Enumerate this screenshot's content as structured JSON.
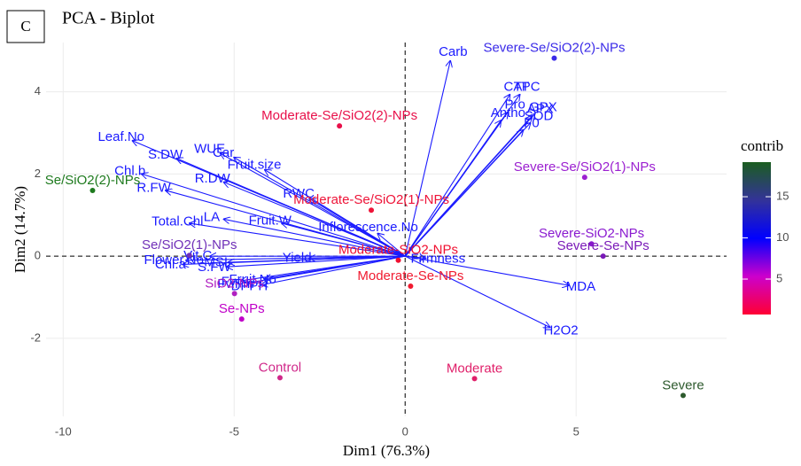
{
  "chart_data": {
    "type": "biplot",
    "panel_label": "C",
    "title": "PCA - Biplot",
    "x_label": "Dim1 (76.3%)",
    "y_label": "Dim2 (14.7%)",
    "xlim": [
      -10.5,
      9.4
    ],
    "ylim": [
      -3.9,
      5.2
    ],
    "xticks": [
      -10,
      -5,
      0,
      5
    ],
    "yticks": [
      -2,
      0,
      2,
      4
    ],
    "grid": true,
    "points": [
      {
        "name": "Severe-Se/SiO2(2)-NPs",
        "x": 4.36,
        "y": 4.82,
        "color": "#3a2ae8"
      },
      {
        "name": "Severe-Se/SiO2(1)-NPs",
        "x": 5.25,
        "y": 1.92,
        "color": "#9b1fd0"
      },
      {
        "name": "Severe-SiO2-NPs",
        "x": 5.45,
        "y": 0.3,
        "color": "#8a1ad0"
      },
      {
        "name": "Severe-Se-NPs",
        "x": 5.79,
        "y": 0.0,
        "color": "#7a1ab8"
      },
      {
        "name": "Moderate-Se/SiO2(2)-NPs",
        "x": -1.92,
        "y": 3.17,
        "color": "#e8104a"
      },
      {
        "name": "Moderate-Se/SiO2(1)-NPs",
        "x": -0.99,
        "y": 1.12,
        "color": "#ee1438"
      },
      {
        "name": "Moderate-SiO2-NPs",
        "x": -0.2,
        "y": -0.1,
        "color": "#f01030"
      },
      {
        "name": "Moderate-Se-NPs",
        "x": 0.16,
        "y": -0.73,
        "color": "#f01a30"
      },
      {
        "name": "Moderate",
        "x": 2.03,
        "y": -2.98,
        "color": "#e0206a"
      },
      {
        "name": "Severe",
        "x": 8.13,
        "y": -3.39,
        "color": "#2d5a2d"
      },
      {
        "name": "Control",
        "x": -3.66,
        "y": -2.96,
        "color": "#d0288a"
      },
      {
        "name": "Se-NPs",
        "x": -4.78,
        "y": -1.53,
        "color": "#c000c8"
      },
      {
        "name": "SiO2-NPs",
        "x": -4.99,
        "y": -0.91,
        "color": "#b020c0"
      },
      {
        "name": "Se/SiO2(1)-NPs",
        "x": -6.31,
        "y": 0.02,
        "color": "#7030b8"
      },
      {
        "name": "Se/SiO2(2)-NPs",
        "x": -9.14,
        "y": 1.6,
        "color": "#1e7a1e"
      }
    ],
    "arrows": [
      {
        "name": "Carb",
        "x": 1.32,
        "y": 4.75,
        "color": "#1a1aff"
      },
      {
        "name": "CAT",
        "x": 3.06,
        "y": 3.93,
        "color": "#1a1aff"
      },
      {
        "name": "TPC",
        "x": 3.35,
        "y": 3.93,
        "color": "#1a1aff"
      },
      {
        "name": "GPX",
        "x": 3.79,
        "y": 3.46,
        "color": "#1a1aff"
      },
      {
        "name": "Pro",
        "x": 3.0,
        "y": 3.5,
        "color": "#1a1aff"
      },
      {
        "name": "APX",
        "x": 3.71,
        "y": 3.41,
        "color": "#1a1aff"
      },
      {
        "name": "SOD",
        "x": 3.66,
        "y": 3.24,
        "color": "#1a1aff"
      },
      {
        "name": "Antho",
        "x": 2.8,
        "y": 3.3,
        "color": "#1a1aff"
      },
      {
        "name": "F0",
        "x": 3.45,
        "y": 3.07,
        "color": "#1a1aff"
      },
      {
        "name": "MDA",
        "x": 4.78,
        "y": -0.71,
        "color": "#1a1aff"
      },
      {
        "name": "H2O2",
        "x": 4.23,
        "y": -1.73,
        "color": "#1a1aff"
      },
      {
        "name": "Firmness",
        "x": 0.6,
        "y": -0.05,
        "color": "#1a1aff"
      },
      {
        "name": "Inflorescence.No",
        "x": -0.8,
        "y": 0.55,
        "color": "#1a1aff"
      },
      {
        "name": "Yield",
        "x": -2.8,
        "y": -0.05,
        "color": "#1a1aff"
      },
      {
        "name": "Fruit.No",
        "x": -4.1,
        "y": -0.55,
        "color": "#1a1aff"
      },
      {
        "name": "DPPH",
        "x": -4.2,
        "y": -0.7,
        "color": "#1a1aff"
      },
      {
        "name": "MSI",
        "x": -5.17,
        "y": -0.15,
        "color": "#1a1aff"
      },
      {
        "name": "S.FW",
        "x": -5.22,
        "y": -0.26,
        "color": "#1a1aff"
      },
      {
        "name": "Fv",
        "x": -4.8,
        "y": -0.6,
        "color": "#1a1aff"
      },
      {
        "name": "Fv.Fm",
        "x": -4.6,
        "y": -0.65,
        "color": "#1a1aff"
      },
      {
        "name": "Leaf.No",
        "x": -7.97,
        "y": 2.81,
        "color": "#1a1aff"
      },
      {
        "name": "S.DW",
        "x": -6.68,
        "y": 2.38,
        "color": "#1a1aff"
      },
      {
        "name": "WUE",
        "x": -5.4,
        "y": 2.5,
        "color": "#1a1aff"
      },
      {
        "name": "Car",
        "x": -5.0,
        "y": 2.4,
        "color": "#1a1aff"
      },
      {
        "name": "Chl.b",
        "x": -7.7,
        "y": 2.0,
        "color": "#1a1aff"
      },
      {
        "name": "R.FW",
        "x": -7.0,
        "y": 1.6,
        "color": "#1a1aff"
      },
      {
        "name": "R.DW",
        "x": -5.3,
        "y": 1.8,
        "color": "#1a1aff"
      },
      {
        "name": "Fruit.size",
        "x": -4.1,
        "y": 2.1,
        "color": "#1a1aff"
      },
      {
        "name": "Fruit.W",
        "x": -3.6,
        "y": 0.8,
        "color": "#1a1aff"
      },
      {
        "name": "Total.Chl",
        "x": -6.3,
        "y": 0.8,
        "color": "#1a1aff"
      },
      {
        "name": "LA",
        "x": -5.3,
        "y": 0.9,
        "color": "#1a1aff"
      },
      {
        "name": "RWC",
        "x": -2.8,
        "y": 1.4,
        "color": "#1a1aff"
      },
      {
        "name": "Chl.a",
        "x": -6.5,
        "y": -0.2,
        "color": "#1a1aff"
      },
      {
        "name": "Flower.No",
        "x": -6.4,
        "y": -0.1,
        "color": "#1a1aff"
      },
      {
        "name": "Vit.C",
        "x": -5.7,
        "y": 0.0,
        "color": "#1a1aff"
      }
    ],
    "legend": {
      "title": "contrib",
      "lim": [
        0.7,
        19.2
      ],
      "ticks": [
        5,
        10,
        15
      ],
      "colors": [
        "#ff0033",
        "#cc00cc",
        "#0000ff",
        "#333399",
        "#1b5e20"
      ]
    }
  }
}
